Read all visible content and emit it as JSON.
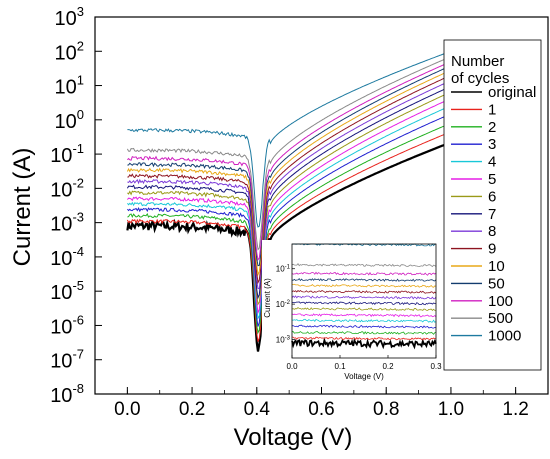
{
  "chart_data": {
    "type": "line",
    "xlabel": "Voltage (V)",
    "ylabel": "Current (A)",
    "y_scale": "log",
    "xlim": [
      -0.1,
      1.3
    ],
    "ylim": [
      1e-08,
      1000
    ],
    "x_ticks": [
      "0.0",
      "0.2",
      "0.4",
      "0.6",
      "0.8",
      "1.0",
      "1.2"
    ],
    "x_tick_values": [
      0.0,
      0.2,
      0.4,
      0.6,
      0.8,
      1.0,
      1.2
    ],
    "y_ticks": [
      {
        "base": "10",
        "exp": "3",
        "value": 1000
      },
      {
        "base": "10",
        "exp": "2",
        "value": 100
      },
      {
        "base": "10",
        "exp": "1",
        "value": 10
      },
      {
        "base": "10",
        "exp": "0",
        "value": 1
      },
      {
        "base": "10",
        "exp": "-1",
        "value": 0.1
      },
      {
        "base": "10",
        "exp": "-2",
        "value": 0.01
      },
      {
        "base": "10",
        "exp": "-3",
        "value": 0.001
      },
      {
        "base": "10",
        "exp": "-4",
        "value": 0.0001
      },
      {
        "base": "10",
        "exp": "-5",
        "value": 1e-05
      },
      {
        "base": "10",
        "exp": "-6",
        "value": 1e-06
      },
      {
        "base": "10",
        "exp": "-7",
        "value": 1e-07
      },
      {
        "base": "10",
        "exp": "-8",
        "value": 1e-08
      }
    ],
    "legend": {
      "title_line1": "Number",
      "title_line2": "of cycles",
      "placement": "right"
    },
    "series": [
      {
        "name": "original",
        "color": "#000000",
        "i_at_0": 0.0008,
        "i_at_1": 0.22
      },
      {
        "name": "1",
        "color": "#e8221c",
        "i_at_0": 0.0011,
        "i_at_1": 0.45
      },
      {
        "name": "2",
        "color": "#1fb01f",
        "i_at_0": 0.0016,
        "i_at_1": 0.8
      },
      {
        "name": "3",
        "color": "#1f1fd0",
        "i_at_0": 0.0024,
        "i_at_1": 1.5
      },
      {
        "name": "4",
        "color": "#18c8d8",
        "i_at_0": 0.0035,
        "i_at_1": 2.6
      },
      {
        "name": "5",
        "color": "#e61ee6",
        "i_at_0": 0.005,
        "i_at_1": 4.2
      },
      {
        "name": "6",
        "color": "#9a9a18",
        "i_at_0": 0.0075,
        "i_at_1": 6.5
      },
      {
        "name": "7",
        "color": "#14147a",
        "i_at_0": 0.011,
        "i_at_1": 9.5
      },
      {
        "name": "8",
        "color": "#7b3ad8",
        "i_at_0": 0.016,
        "i_at_1": 14
      },
      {
        "name": "9",
        "color": "#8e1420",
        "i_at_0": 0.023,
        "i_at_1": 20
      },
      {
        "name": "10",
        "color": "#e8a818",
        "i_at_0": 0.034,
        "i_at_1": 28
      },
      {
        "name": "50",
        "color": "#123c6e",
        "i_at_0": 0.05,
        "i_at_1": 38
      },
      {
        "name": "100",
        "color": "#d01fc0",
        "i_at_0": 0.075,
        "i_at_1": 50
      },
      {
        "name": "500",
        "color": "#8a8a8a",
        "i_at_0": 0.13,
        "i_at_1": 70
      },
      {
        "name": "1000",
        "color": "#1e7aa0",
        "i_at_0": 0.5,
        "i_at_1": 100
      }
    ],
    "inset": {
      "xlabel": "Voltage (V)",
      "ylabel": "Current (A)",
      "xlim": [
        0.0,
        0.3
      ],
      "ylim": [
        0.0003,
        0.5
      ],
      "x_ticks": [
        "0.0",
        "0.1",
        "0.2",
        "0.3"
      ],
      "x_tick_values": [
        0.0,
        0.1,
        0.2,
        0.3
      ],
      "y_ticks": [
        {
          "base": "10",
          "exp": "-1",
          "value": 0.1
        },
        {
          "base": "10",
          "exp": "-2",
          "value": 0.01
        },
        {
          "base": "10",
          "exp": "-3",
          "value": 0.001
        }
      ]
    }
  }
}
